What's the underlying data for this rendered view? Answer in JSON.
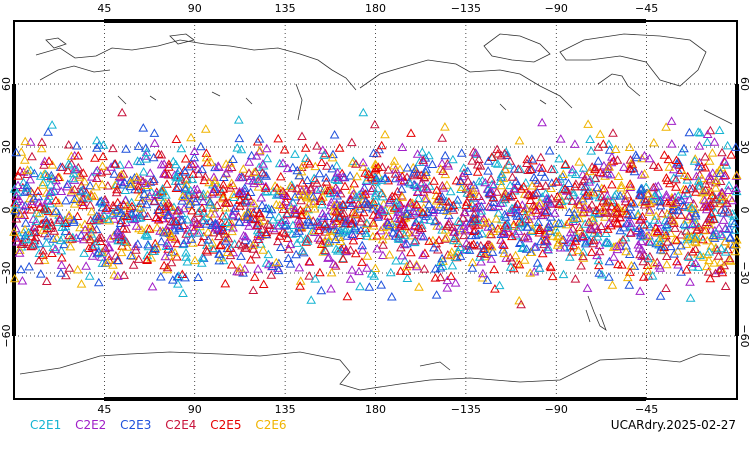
{
  "map": {
    "projection": "cylindrical",
    "lon_range": [
      0,
      360
    ],
    "lat_range": [
      -90,
      90
    ],
    "marker_shape": "triangle-outline",
    "marker_band": "roughly 45S to 45N",
    "grid": "dotted",
    "lon_ticks": [
      {
        "value": 45,
        "label": "45"
      },
      {
        "value": 90,
        "label": "90"
      },
      {
        "value": 135,
        "label": "135"
      },
      {
        "value": 180,
        "label": "180"
      },
      {
        "value": 225,
        "label": "−135"
      },
      {
        "value": 270,
        "label": "−90"
      },
      {
        "value": 315,
        "label": "−45"
      }
    ],
    "lat_ticks": [
      {
        "value": 60,
        "label": "60"
      },
      {
        "value": 30,
        "label": "30"
      },
      {
        "value": 0,
        "label": "0"
      },
      {
        "value": -30,
        "label": "−30"
      },
      {
        "value": -60,
        "label": "−60"
      }
    ]
  },
  "legend": [
    {
      "label": "C2E1",
      "color": "#14b4d2"
    },
    {
      "label": "C2E2",
      "color": "#a01ec8"
    },
    {
      "label": "C2E3",
      "color": "#1e50dc"
    },
    {
      "label": "C2E4",
      "color": "#c8143c"
    },
    {
      "label": "C2E5",
      "color": "#e60000"
    },
    {
      "label": "C2E6",
      "color": "#f0b400"
    }
  ],
  "caption": "UCARdry.2025-02-27"
}
